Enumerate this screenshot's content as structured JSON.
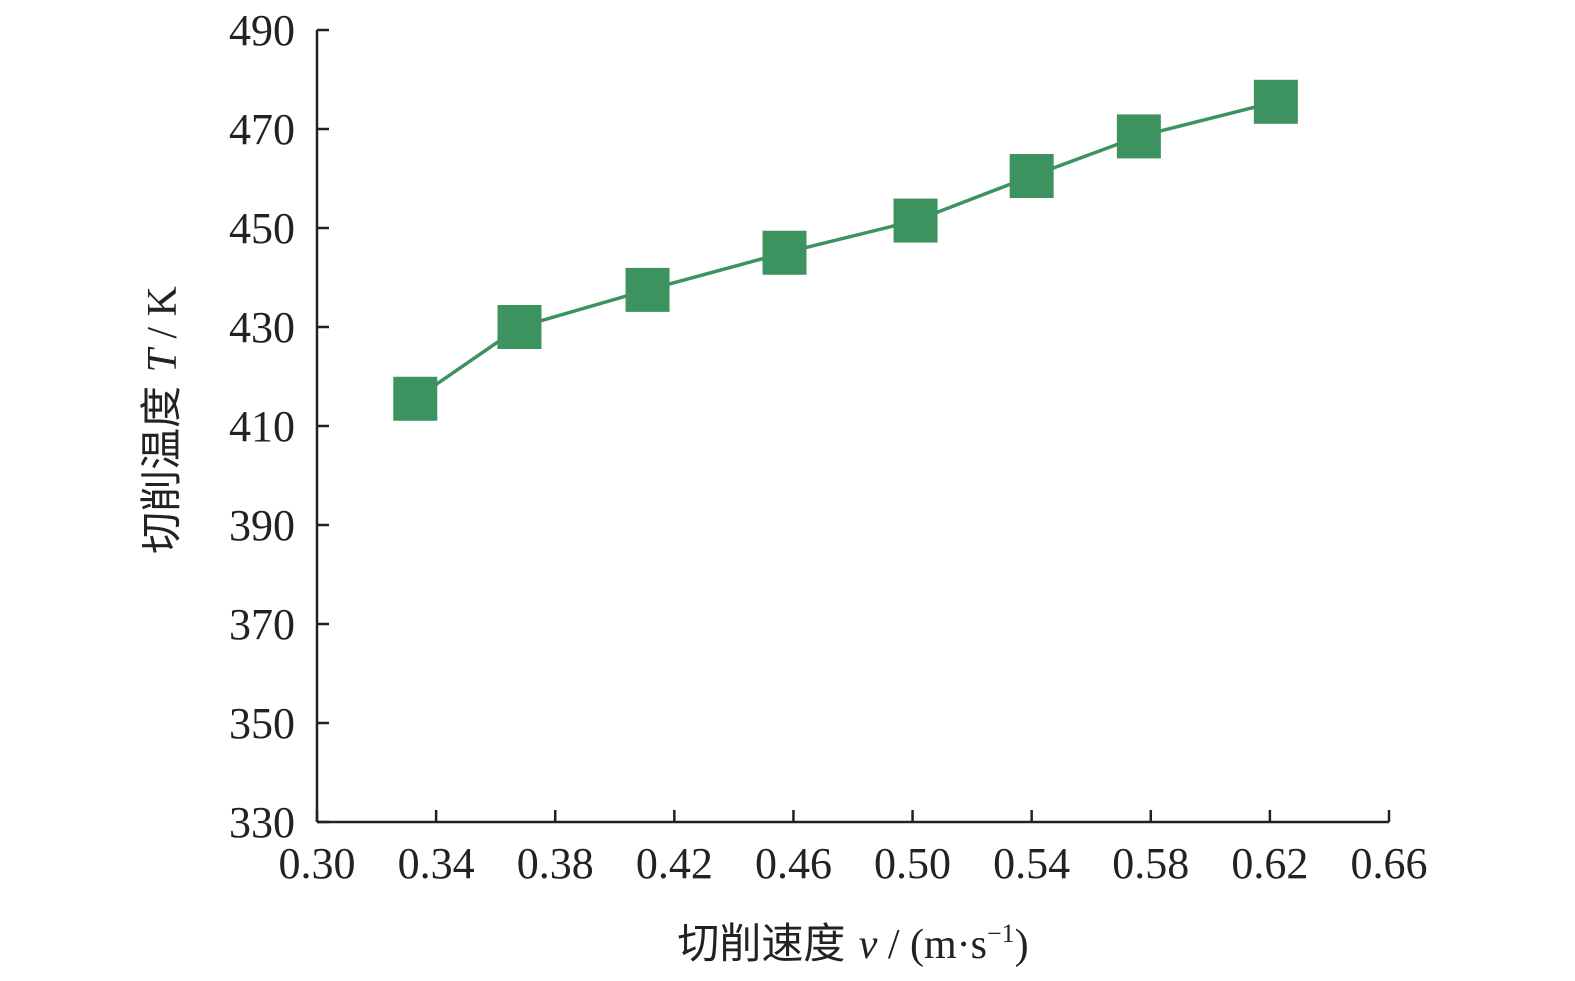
{
  "chart_data": {
    "type": "line",
    "xlabel_prefix": "切削速度 ",
    "xlabel_var": "v",
    "xlabel_unit_open": " / (m·s",
    "xlabel_unit_exp": "−1",
    "xlabel_unit_close": ")",
    "ylabel_prefix": "切削温度 ",
    "ylabel_var": "T",
    "ylabel_unit": " / K",
    "xlim": [
      0.3,
      0.66
    ],
    "ylim": [
      330,
      490
    ],
    "xticks": [
      "0.30",
      "0.34",
      "0.38",
      "0.42",
      "0.46",
      "0.50",
      "0.54",
      "0.58",
      "0.62",
      "0.66"
    ],
    "yticks": [
      "330",
      "350",
      "370",
      "390",
      "410",
      "430",
      "450",
      "470",
      "490"
    ],
    "grid": false,
    "series": [
      {
        "color": "#3d9360",
        "marker": "square",
        "x": [
          0.333,
          0.368,
          0.411,
          0.457,
          0.501,
          0.54,
          0.576,
          0.622
        ],
        "y": [
          415.5,
          430,
          437.5,
          445,
          451.5,
          460.5,
          468.5,
          475.5
        ]
      }
    ]
  }
}
